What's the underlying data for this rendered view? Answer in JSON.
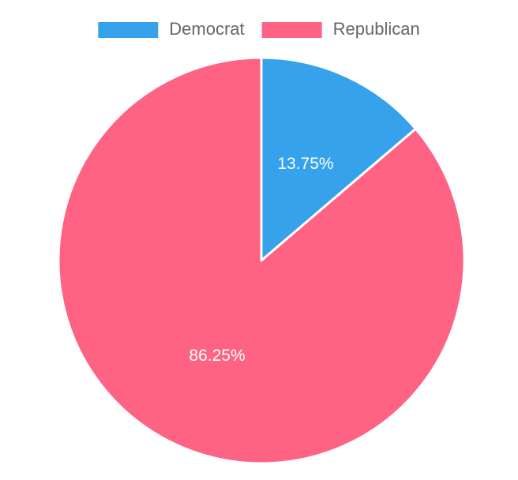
{
  "chart_data": {
    "type": "pie",
    "categories": [
      "Democrat",
      "Republican"
    ],
    "values": [
      13.75,
      86.25
    ],
    "value_labels": [
      "13.75%",
      "86.25%"
    ],
    "colors": [
      "#36A2EB",
      "#FF6384"
    ],
    "legend_position": "top",
    "start_angle": "top, clockwise"
  }
}
